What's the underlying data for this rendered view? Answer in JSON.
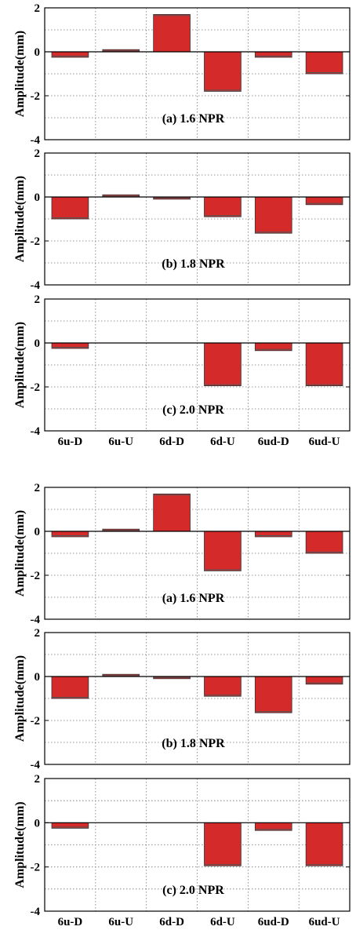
{
  "chart_data": [
    {
      "type": "bar",
      "title": "(a) 1.6 NPR",
      "ylabel": "Amplitude(mm)",
      "ylim": [
        -4,
        2
      ],
      "yticks": [
        "2",
        "0",
        "-2",
        "-4"
      ],
      "categories": [
        "6u-D",
        "6u-U",
        "6d-D",
        "6d-U",
        "6ud-D",
        "6ud-U"
      ],
      "values": [
        -0.25,
        0.1,
        1.7,
        -1.8,
        -0.25,
        -1.0
      ],
      "grid": true,
      "bar_color": "#d42a2a"
    },
    {
      "type": "bar",
      "title": "(b) 1.8 NPR",
      "ylabel": "Amplitude(mm)",
      "ylim": [
        -4,
        2
      ],
      "yticks": [
        "2",
        "0",
        "-2",
        "-4"
      ],
      "categories": [
        "6u-D",
        "6u-U",
        "6d-D",
        "6d-U",
        "6ud-D",
        "6ud-U"
      ],
      "values": [
        -1.0,
        0.1,
        -0.1,
        -0.9,
        -1.65,
        -0.35
      ],
      "grid": true,
      "bar_color": "#d42a2a"
    },
    {
      "type": "bar",
      "title": "(c) 2.0 NPR",
      "ylabel": "Amplitude(mm)",
      "ylim": [
        -4,
        2
      ],
      "yticks": [
        "2",
        "0",
        "-2",
        "-4"
      ],
      "categories": [
        "6u-D",
        "6u-U",
        "6d-D",
        "6d-U",
        "6ud-D",
        "6ud-U"
      ],
      "category_labels_shown": true,
      "values": [
        -0.25,
        0,
        0,
        -1.95,
        -0.35,
        -1.95
      ],
      "grid": true,
      "bar_color": "#d42a2a"
    },
    {
      "type": "bar",
      "title": "(a) 1.6 NPR",
      "ylabel": "Amplitude(mm)",
      "ylim": [
        -4,
        2
      ],
      "yticks": [
        "2",
        "0",
        "-2",
        "-4"
      ],
      "categories": [
        "6u-D",
        "6u-U",
        "6d-D",
        "6d-U",
        "6ud-D",
        "6ud-U"
      ],
      "values": [
        -0.25,
        0.1,
        1.7,
        -1.8,
        -0.25,
        -1.0
      ],
      "grid": true,
      "bar_color": "#d42a2a"
    },
    {
      "type": "bar",
      "title": "(b) 1.8 NPR",
      "ylabel": "Amplitude(mm)",
      "ylim": [
        -4,
        2
      ],
      "yticks": [
        "2",
        "0",
        "-2",
        "-4"
      ],
      "categories": [
        "6u-D",
        "6u-U",
        "6d-D",
        "6d-U",
        "6ud-D",
        "6ud-U"
      ],
      "values": [
        -1.0,
        0.1,
        -0.1,
        -0.9,
        -1.65,
        -0.35
      ],
      "grid": true,
      "bar_color": "#d42a2a"
    },
    {
      "type": "bar",
      "title": "(c) 2.0 NPR",
      "ylabel": "Amplitude(mm)",
      "ylim": [
        -4,
        2
      ],
      "yticks": [
        "2",
        "0",
        "-2",
        "-4"
      ],
      "categories": [
        "6u-D",
        "6u-U",
        "6d-D",
        "6d-U",
        "6ud-D",
        "6ud-U"
      ],
      "category_labels_shown": true,
      "values": [
        -0.25,
        0,
        0,
        -1.95,
        -0.35,
        -1.95
      ],
      "grid": true,
      "bar_color": "#d42a2a"
    }
  ]
}
